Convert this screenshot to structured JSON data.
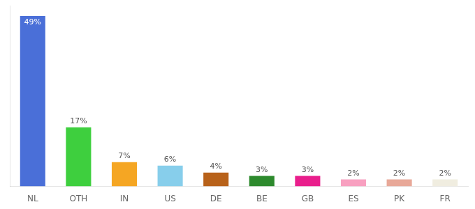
{
  "chart_data": {
    "type": "bar",
    "categories": [
      "NL",
      "OTH",
      "IN",
      "US",
      "DE",
      "BE",
      "GB",
      "ES",
      "PK",
      "FR"
    ],
    "values": [
      49,
      17,
      7,
      6,
      4,
      3,
      3,
      2,
      2,
      2
    ],
    "value_labels": [
      "49%",
      "17%",
      "7%",
      "6%",
      "4%",
      "3%",
      "3%",
      "2%",
      "2%",
      "2%"
    ],
    "colors": [
      "#4a6fd8",
      "#3ecf3e",
      "#f5a623",
      "#87ceeb",
      "#b8621a",
      "#2d8a2d",
      "#e91e8c",
      "#f8a0c0",
      "#e8a898",
      "#f0ede0"
    ],
    "ylim": [
      0,
      52
    ],
    "grid": false,
    "data_labels": true,
    "tick_labels": "x"
  }
}
